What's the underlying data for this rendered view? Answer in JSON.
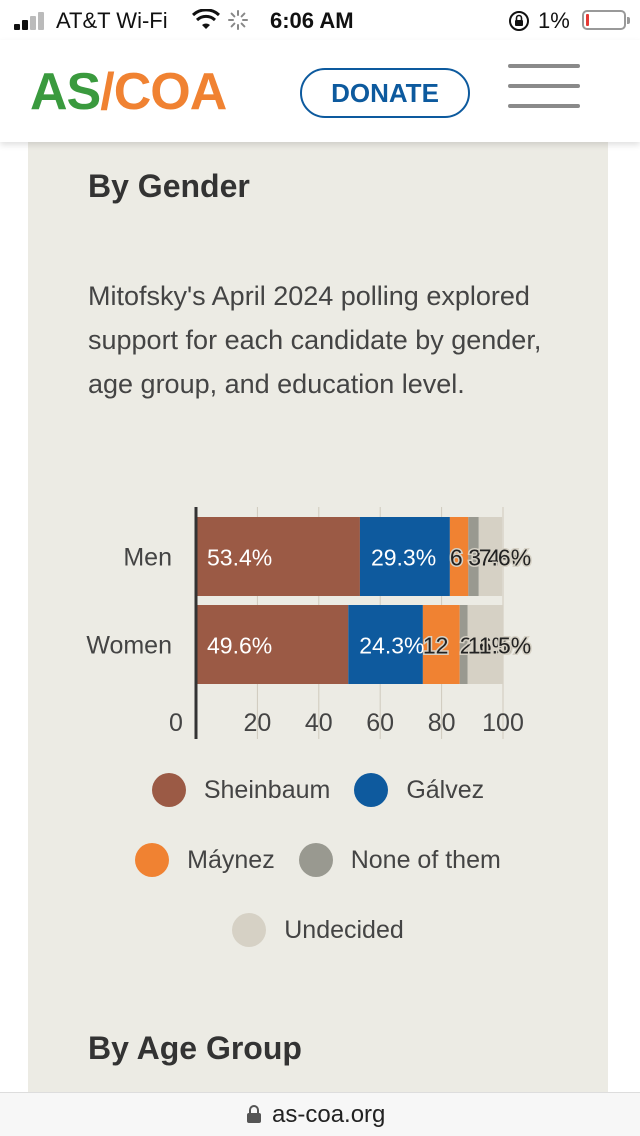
{
  "status_bar": {
    "carrier": "AT&T Wi-Fi",
    "time": "6:06 AM",
    "battery": "1%",
    "signal_icon": "signal-icon",
    "wifi_icon": "wifi-icon",
    "loading_icon": "loading-spinner-icon",
    "lock_icon": "orientation-lock-icon",
    "battery_icon": "battery-icon",
    "battery_level": 0.01
  },
  "header": {
    "logo_part1": "AS",
    "logo_sep": "/",
    "logo_part2": "COA",
    "donate_label": "DONATE",
    "menu_icon": "hamburger-menu-icon",
    "colors": {
      "logo_green": "#3a9a3e",
      "logo_orange": "#f08232",
      "donate_blue": "#0d5a9e"
    }
  },
  "section": {
    "title": "By Gender",
    "intro": "Mitofsky's April 2024 polling explored support for each candidate by gender, age group, and education level.",
    "next_title": "By Age Group"
  },
  "chart_data": {
    "type": "bar",
    "orientation": "horizontal",
    "stacked": true,
    "categories": [
      "Men",
      "Women"
    ],
    "series": [
      {
        "name": "Sheinbaum",
        "color": "#9b5a45",
        "values": [
          53.4,
          49.6
        ],
        "labels": [
          "53.4%",
          "49.6%"
        ]
      },
      {
        "name": "Gálvez",
        "color": "#0e5a9e",
        "values": [
          29.3,
          24.3
        ],
        "labels": [
          "29.3%",
          "24.3%"
        ]
      },
      {
        "name": "Máynez",
        "color": "#f08232",
        "values": [
          6.0,
          12.0
        ],
        "labels": [
          "6",
          "12"
        ]
      },
      {
        "name": "None of them",
        "color": "#999990",
        "values": [
          3.4,
          2.6
        ],
        "labels": [
          "3.4%",
          "2.6%"
        ]
      },
      {
        "name": "Undecided",
        "color": "#d6d1c5",
        "values": [
          7.6,
          11.5
        ],
        "labels": [
          "7.6%",
          "11.5%"
        ]
      }
    ],
    "x_ticks": [
      "0",
      "20",
      "40",
      "60",
      "80",
      "100"
    ],
    "xlim": [
      0,
      100
    ],
    "grid": true,
    "legend_position": "bottom"
  },
  "footer": {
    "url": "as-coa.org",
    "lock_icon": "lock-icon"
  }
}
